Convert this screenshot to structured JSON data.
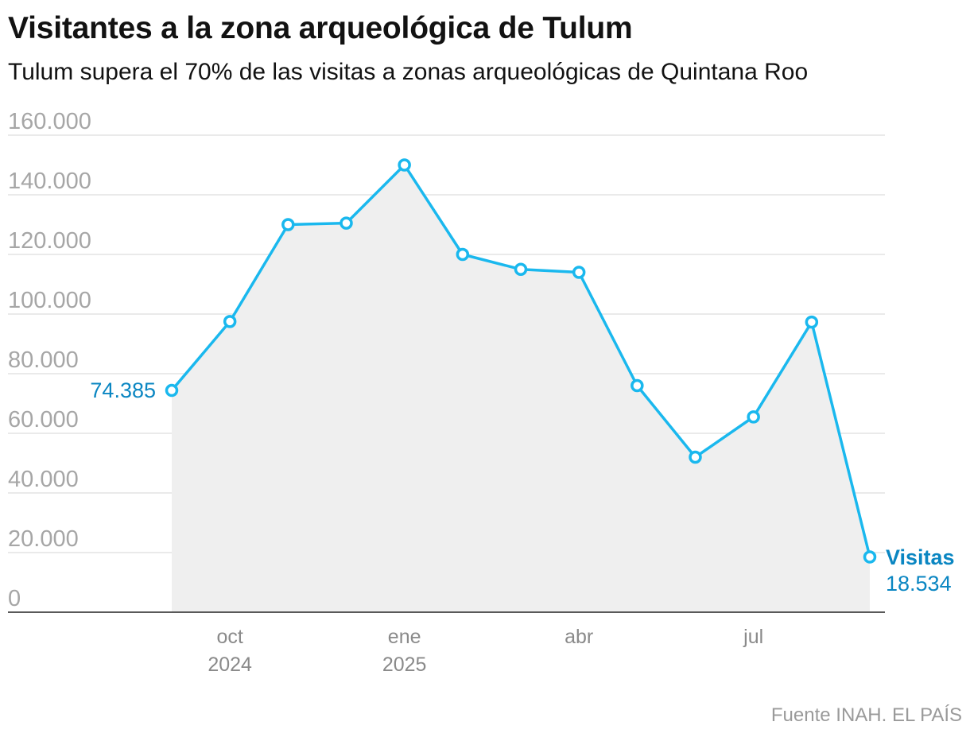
{
  "header": {
    "title": "Visitantes a la zona arqueológica de Tulum",
    "subtitle": "Tulum supera el 70% de las visitas a zonas arqueológicas de Quintana Roo"
  },
  "footer": {
    "source": "Fuente INAH. EL PAÍS"
  },
  "colors": {
    "line": "#1ab8ee",
    "area": "#efefef",
    "grid": "#e3e3e3",
    "axis": "#222222",
    "label": "#0a86c2"
  },
  "chart_data": {
    "type": "area",
    "title": "Visitantes a la zona arqueológica de Tulum",
    "subtitle": "Tulum supera el 70% de las visitas a zonas arqueológicas de Quintana Roo",
    "xlabel": "",
    "ylabel": "",
    "ylim": [
      0,
      160000
    ],
    "yticks": [
      0,
      20000,
      40000,
      60000,
      80000,
      100000,
      120000,
      140000,
      160000
    ],
    "ytick_labels": [
      "0",
      "20.000",
      "40.000",
      "60.000",
      "80.000",
      "100.000",
      "120.000",
      "140.000",
      "160.000"
    ],
    "xticks": [
      {
        "index": 1,
        "line1": "oct",
        "line2": "2024"
      },
      {
        "index": 4,
        "line1": "ene",
        "line2": "2025"
      },
      {
        "index": 7,
        "line1": "abr",
        "line2": ""
      },
      {
        "index": 10,
        "line1": "jul",
        "line2": ""
      }
    ],
    "categories": [
      "sep 2024",
      "oct 2024",
      "nov 2024",
      "dic 2024",
      "ene 2025",
      "feb 2025",
      "mar 2025",
      "abr 2025",
      "may 2025",
      "jun 2025",
      "jul 2025",
      "ago 2025",
      "sep 2025"
    ],
    "series": [
      {
        "name": "Visitas",
        "values": [
          74385,
          97500,
          130000,
          130500,
          150000,
          120000,
          115000,
          114000,
          76000,
          52000,
          65500,
          97300,
          18534
        ]
      }
    ],
    "annotations": {
      "first_value": "74.385",
      "last_series": "Visitas",
      "last_value": "18.534"
    },
    "grid": true,
    "legend": "none"
  }
}
